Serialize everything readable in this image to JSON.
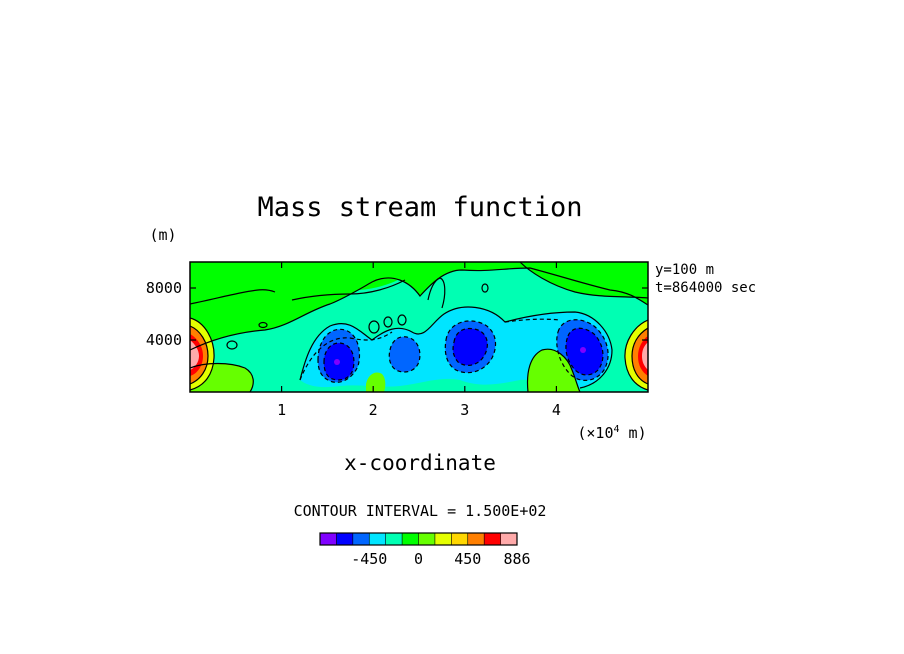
{
  "chart_data": {
    "type": "contour",
    "title": "Mass stream function",
    "xlabel": "x-coordinate",
    "x_unit": "(×10⁴ m)",
    "x_unit_main": "(×10",
    "x_unit_exp": "4",
    "x_unit_tail": " m)",
    "y_unit": "(m)",
    "xlim": [
      0,
      5
    ],
    "ylim": [
      0,
      10000
    ],
    "x_ticks": [
      1,
      2,
      3,
      4
    ],
    "y_ticks": [
      4000,
      8000
    ],
    "annotations": [
      "y=100 m",
      "t=864000 sec"
    ],
    "contour_interval_text": "CONTOUR INTERVAL = 1.500E+02",
    "contour_interval": 150,
    "colorbar": {
      "levels": [
        -750,
        -600,
        -450,
        -300,
        -150,
        0,
        150,
        300,
        450,
        600,
        750,
        886
      ],
      "colors": [
        "#8000ff",
        "#0000ff",
        "#0066ff",
        "#00e5ff",
        "#00ffb3",
        "#00ff00",
        "#66ff00",
        "#e5ff00",
        "#ffd700",
        "#ff7f00",
        "#ff0000",
        "#ffaaaa"
      ],
      "tick_labels": [
        {
          "value": -450,
          "label": "-450"
        },
        {
          "value": 0,
          "label": "0"
        },
        {
          "value": 450,
          "label": "450"
        },
        {
          "value": 886,
          "label": "886"
        }
      ],
      "max": 886
    },
    "features": [
      {
        "x": 0.05,
        "y": 2500,
        "value": 886
      },
      {
        "x": 4.95,
        "y": 2500,
        "value": 886
      },
      {
        "x": 1.6,
        "y": 2300,
        "value": -600
      },
      {
        "x": 2.35,
        "y": 2800,
        "value": -450
      },
      {
        "x": 3.0,
        "y": 3800,
        "value": -600
      },
      {
        "x": 4.25,
        "y": 3300,
        "value": -600
      },
      {
        "x": 3.9,
        "y": 1800,
        "value": 300
      },
      {
        "x": 0.4,
        "y": 1500,
        "value": 150
      },
      {
        "x": 2.0,
        "y": 1000,
        "value": 150
      },
      {
        "x": 4.0,
        "y": 8500,
        "value": 0
      }
    ]
  }
}
